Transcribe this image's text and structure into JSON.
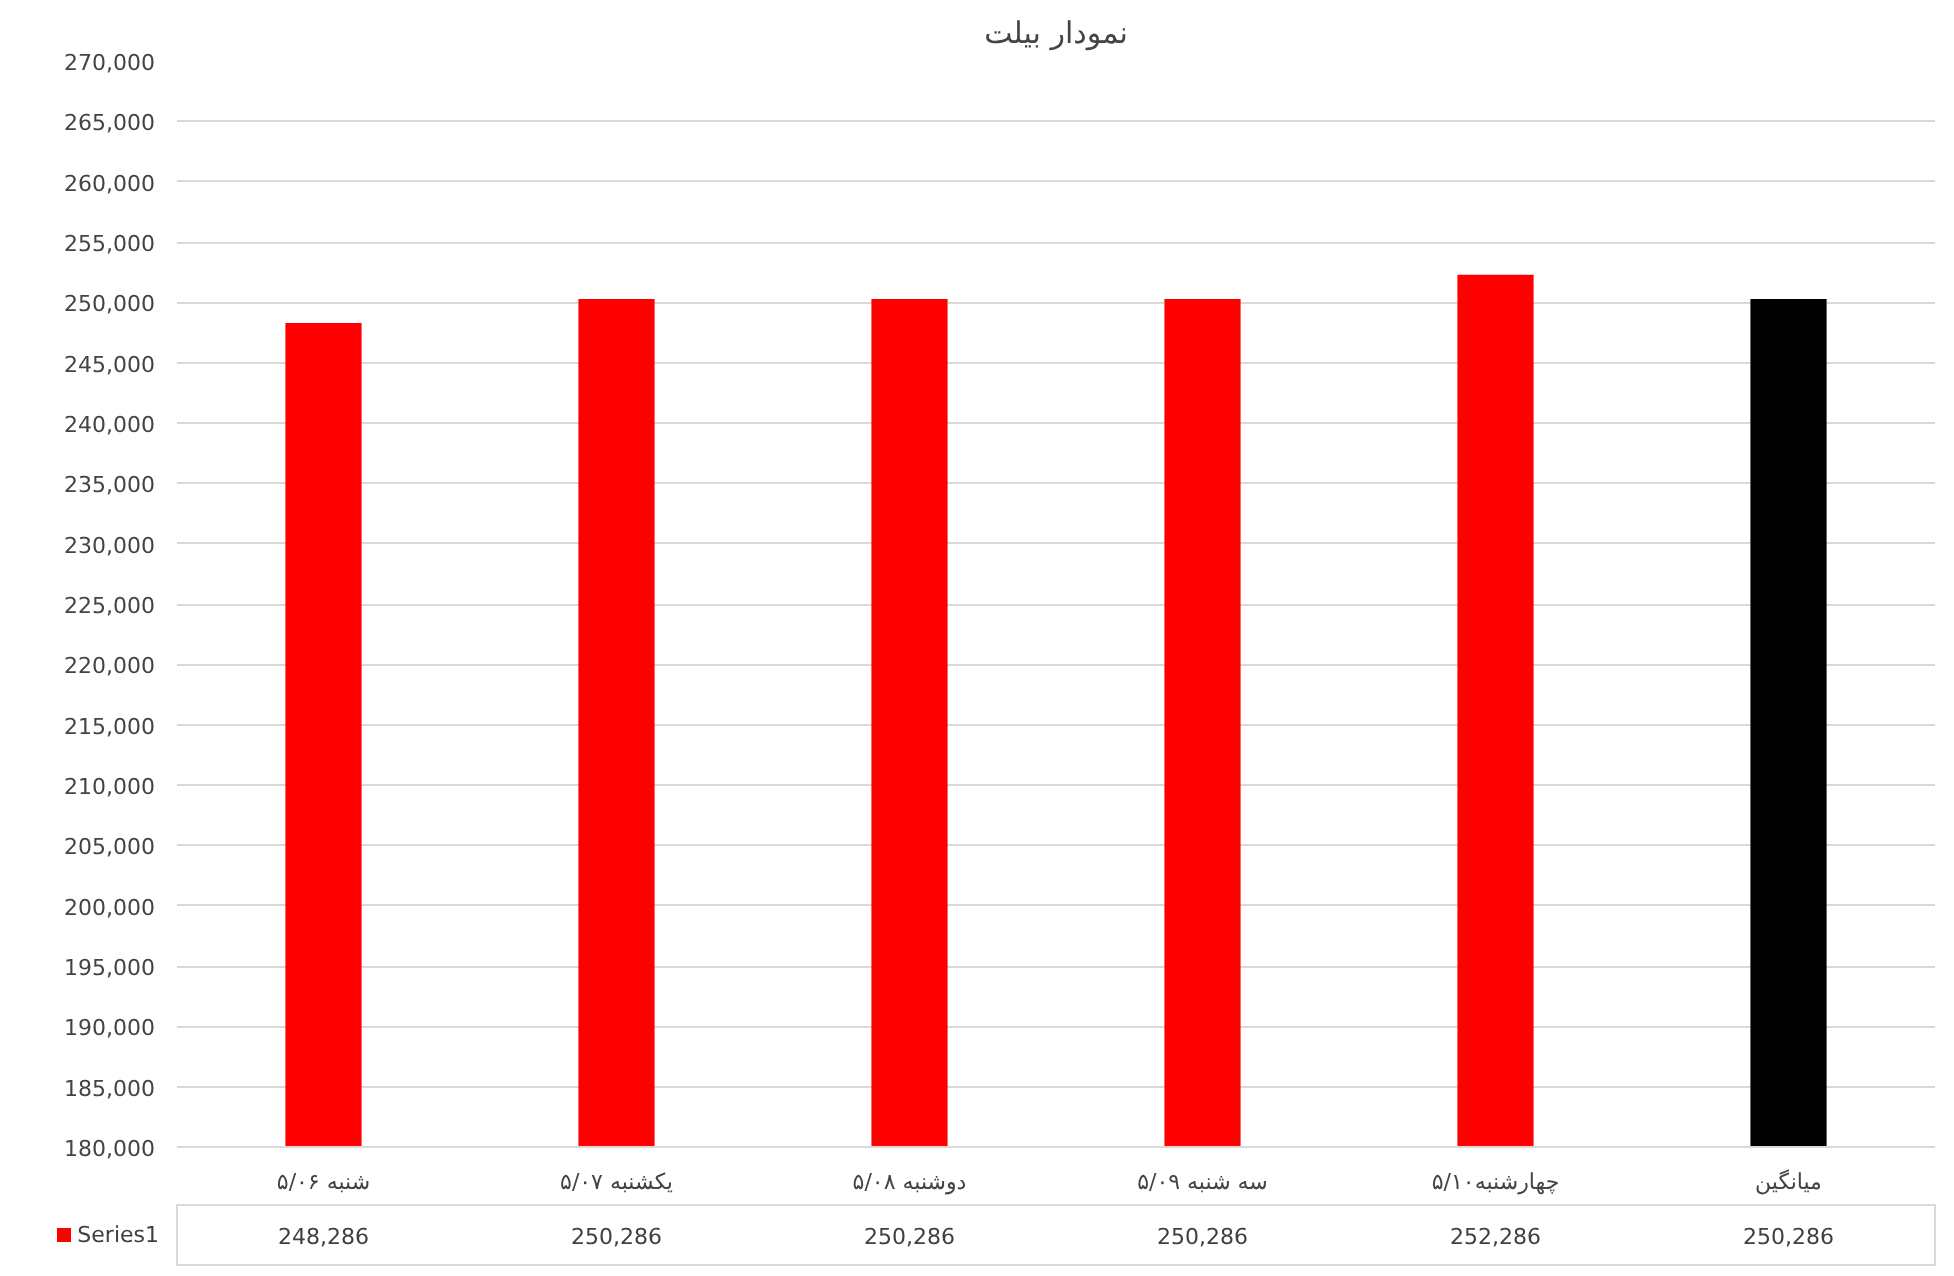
{
  "chart_data": {
    "type": "bar",
    "title": "نمودار بیلت",
    "categories": [
      "شنبه ۵/۰۶",
      "یکشنبه ۵/۰۷",
      "دوشنبه ۵/۰۸",
      "سه شنبه ۵/۰۹",
      "چهارشنبه۵/۱۰",
      "میانگین"
    ],
    "series": [
      {
        "name": "Series1",
        "color": "#ff0000",
        "colors": [
          "#ff0000",
          "#ff0000",
          "#ff0000",
          "#ff0000",
          "#ff0000",
          "#000000"
        ],
        "values": [
          248286,
          250286,
          250286,
          250286,
          252286,
          250286
        ]
      }
    ],
    "value_labels": [
      "248,286",
      "250,286",
      "250,286",
      "250,286",
      "252,286",
      "250,286"
    ],
    "ylim": [
      180000,
      270000
    ],
    "yticks": [
      {
        "value": 180000,
        "label": "180,000"
      },
      {
        "value": 185000,
        "label": "185,000"
      },
      {
        "value": 190000,
        "label": "190,000"
      },
      {
        "value": 195000,
        "label": "195,000"
      },
      {
        "value": 200000,
        "label": "200,000"
      },
      {
        "value": 205000,
        "label": "205,000"
      },
      {
        "value": 210000,
        "label": "210,000"
      },
      {
        "value": 215000,
        "label": "215,000"
      },
      {
        "value": 220000,
        "label": "220,000"
      },
      {
        "value": 225000,
        "label": "225,000"
      },
      {
        "value": 230000,
        "label": "230,000"
      },
      {
        "value": 235000,
        "label": "235,000"
      },
      {
        "value": 240000,
        "label": "240,000"
      },
      {
        "value": 245000,
        "label": "245,000"
      },
      {
        "value": 250000,
        "label": "250,000"
      },
      {
        "value": 255000,
        "label": "255,000"
      },
      {
        "value": 260000,
        "label": "260,000"
      },
      {
        "value": 265000,
        "label": "265,000"
      },
      {
        "value": 270000,
        "label": "270,000"
      }
    ],
    "grid": "y",
    "legend": "bottom"
  }
}
